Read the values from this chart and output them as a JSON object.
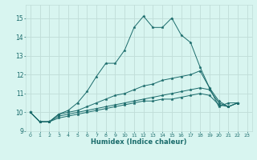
{
  "xlabel": "Humidex (Indice chaleur)",
  "ylabel": "",
  "bg_color": "#d8f5f0",
  "grid_color": "#c0ddd8",
  "line_color": "#1a6b6b",
  "xlim": [
    -0.5,
    23.5
  ],
  "ylim": [
    9.0,
    15.7
  ],
  "xticks": [
    0,
    1,
    2,
    3,
    4,
    5,
    6,
    7,
    8,
    9,
    10,
    11,
    12,
    13,
    14,
    15,
    16,
    17,
    18,
    19,
    20,
    21,
    22,
    23
  ],
  "yticks": [
    9,
    10,
    11,
    12,
    13,
    14,
    15
  ],
  "series": [
    [
      10.0,
      9.5,
      9.5,
      9.9,
      10.1,
      10.5,
      11.1,
      11.9,
      12.6,
      12.6,
      13.3,
      14.5,
      15.1,
      14.5,
      14.5,
      15.0,
      14.1,
      13.7,
      12.4,
      11.3,
      10.3,
      10.5,
      10.5
    ],
    [
      10.0,
      9.5,
      9.5,
      9.9,
      10.0,
      10.1,
      10.3,
      10.5,
      10.7,
      10.9,
      11.0,
      11.2,
      11.4,
      11.5,
      11.7,
      11.8,
      11.9,
      12.0,
      12.2,
      11.3,
      10.6,
      10.3,
      10.5
    ],
    [
      10.0,
      9.5,
      9.5,
      9.8,
      9.9,
      10.0,
      10.1,
      10.2,
      10.3,
      10.4,
      10.5,
      10.6,
      10.7,
      10.8,
      10.9,
      11.0,
      11.1,
      11.2,
      11.3,
      11.2,
      10.5,
      10.3,
      10.5
    ],
    [
      10.0,
      9.5,
      9.5,
      9.7,
      9.8,
      9.9,
      10.0,
      10.1,
      10.2,
      10.3,
      10.4,
      10.5,
      10.6,
      10.6,
      10.7,
      10.7,
      10.8,
      10.9,
      11.0,
      10.9,
      10.4,
      10.3,
      10.5
    ]
  ]
}
